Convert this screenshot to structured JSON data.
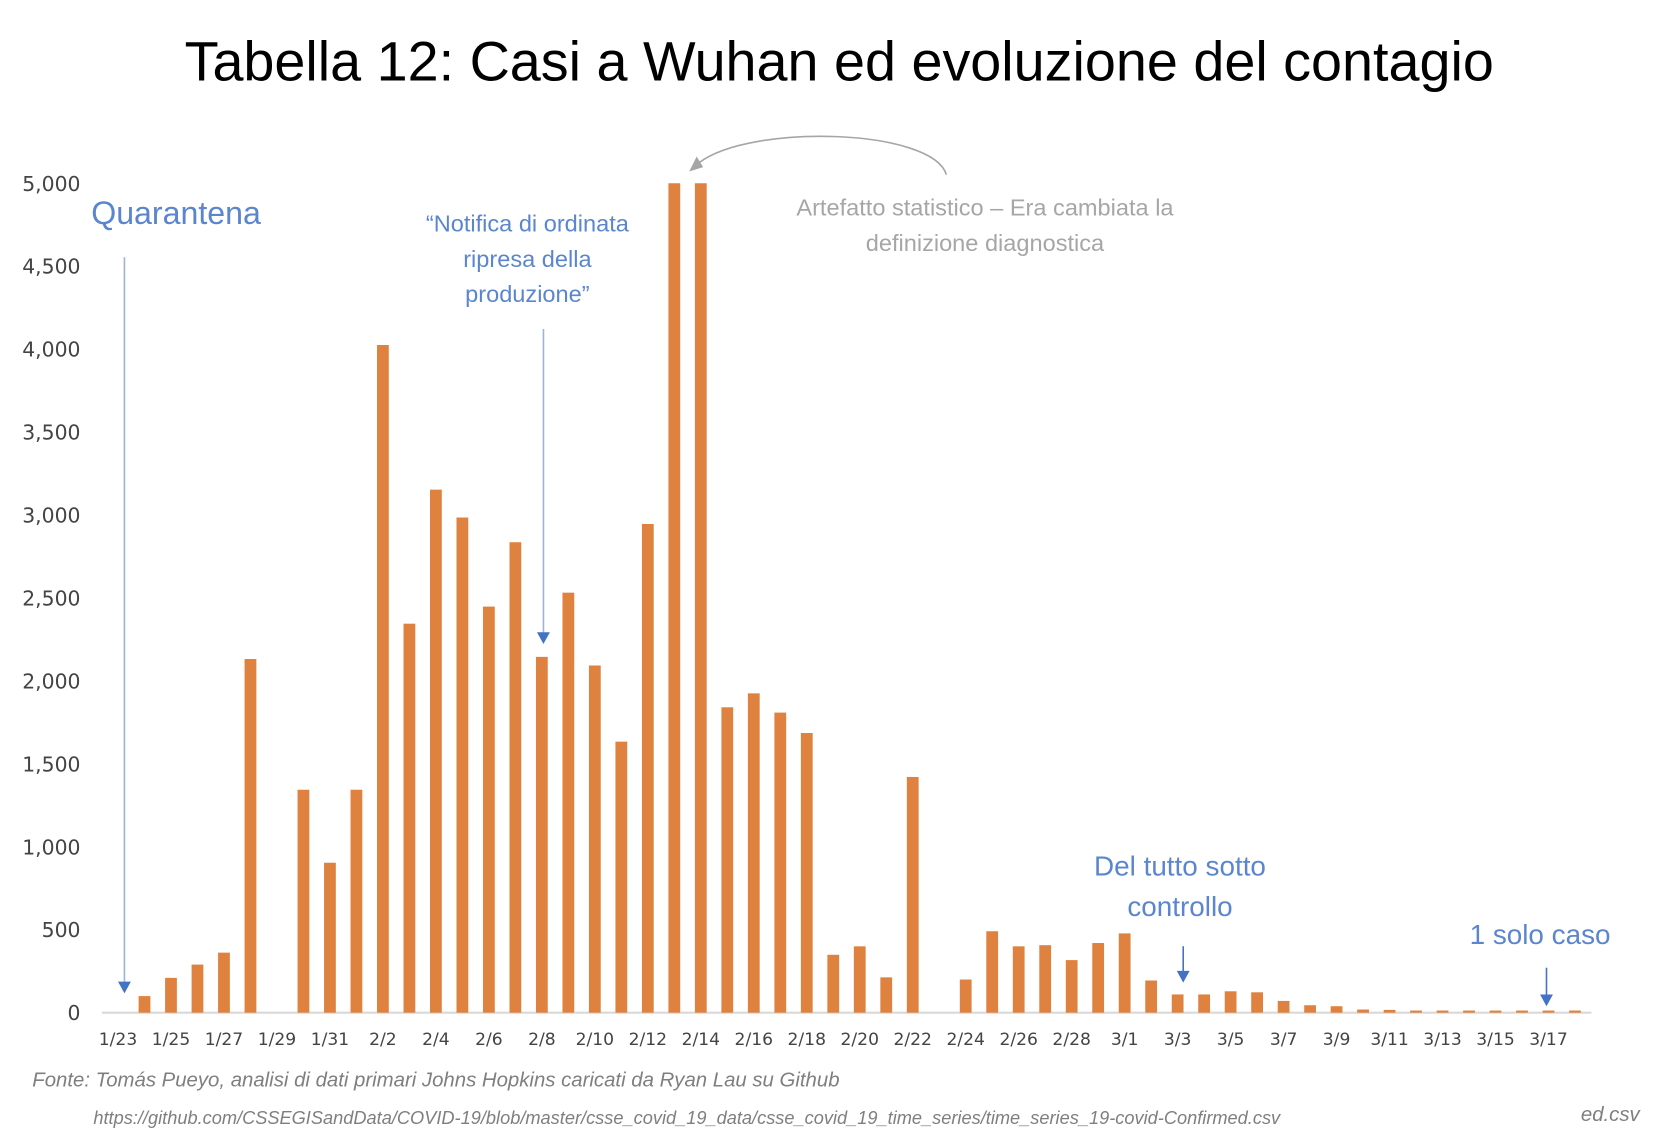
{
  "chart_data": {
    "type": "bar",
    "title": "Tabella 12: Casi a Wuhan ed evoluzione del contagio",
    "xlabel": "",
    "ylabel": "",
    "ylim": [
      0,
      5000
    ],
    "yticks": [
      "0",
      "500",
      "1,000",
      "1,500",
      "2,000",
      "2,500",
      "3,000",
      "3,500",
      "4,000",
      "4,500",
      "5,000"
    ],
    "ytick_values": [
      0,
      500,
      1000,
      1500,
      2000,
      2500,
      3000,
      3500,
      4000,
      4500,
      5000
    ],
    "grid": false,
    "bar_color": "#E0823F",
    "categories": [
      "1/23",
      "1/24",
      "1/25",
      "1/26",
      "1/27",
      "1/28",
      "1/29",
      "1/30",
      "1/31",
      "2/1",
      "2/2",
      "2/3",
      "2/4",
      "2/5",
      "2/6",
      "2/7",
      "2/8",
      "2/9",
      "2/10",
      "2/11",
      "2/12",
      "2/13",
      "2/14",
      "2/15",
      "2/16",
      "2/17",
      "2/18",
      "2/19",
      "2/20",
      "2/21",
      "2/22",
      "2/23",
      "2/24",
      "2/25",
      "2/26",
      "2/27",
      "2/28",
      "2/29",
      "3/1",
      "3/2",
      "3/3",
      "3/4",
      "3/5",
      "3/6",
      "3/7",
      "3/8",
      "3/9",
      "3/10",
      "3/11",
      "3/12",
      "3/13",
      "3/14",
      "3/15",
      "3/16",
      "3/17",
      "3/18"
    ],
    "values": [
      0,
      100,
      210,
      290,
      362,
      2132,
      0,
      1344,
      904,
      1344,
      4025,
      2345,
      3153,
      2985,
      2448,
      2836,
      2145,
      2532,
      2093,
      1634,
      2946,
      5000,
      5000,
      1841,
      1925,
      1809,
      1686,
      349,
      400,
      213,
      1421,
      0,
      200,
      491,
      400,
      407,
      317,
      420,
      478,
      194,
      110,
      110,
      129,
      123,
      71,
      45,
      39,
      19,
      17,
      8,
      5,
      4,
      4,
      3,
      1,
      1
    ],
    "xtick_labels": [
      "1/23",
      "1/25",
      "1/27",
      "1/29",
      "1/31",
      "2/2",
      "2/4",
      "2/6",
      "2/8",
      "2/10",
      "2/12",
      "2/14",
      "2/16",
      "2/18",
      "2/20",
      "2/22",
      "2/24",
      "2/26",
      "2/28",
      "3/1",
      "3/3",
      "3/5",
      "3/7",
      "3/9",
      "3/11",
      "3/13",
      "3/15",
      "3/17"
    ],
    "annotations": {
      "quarantine": "Quarantena",
      "production": [
        "“Notifica di ordinata",
        "ripresa della",
        "produzione”"
      ],
      "artifact": [
        "Artefatto statistico – Era cambiata la",
        "definizione diagnostica"
      ],
      "controlled": [
        "Del tutto sotto",
        "controllo"
      ],
      "one_case": "1 solo caso"
    },
    "annotation_color": "#5B86CF",
    "artifact_color": "#A6A6A6"
  },
  "source": {
    "line1": "Fonte: Tomás Pueyo, analisi di dati primari Johns Hopkins caricati da Ryan Lau su Github",
    "url": "https://github.com/CSSEGISandData/COVID-19/blob/master/csse_covid_19_data/csse_covid_19_time_series/time_series_19-covid-Confirmed.csv",
    "url_fragment": "ed.csv"
  }
}
